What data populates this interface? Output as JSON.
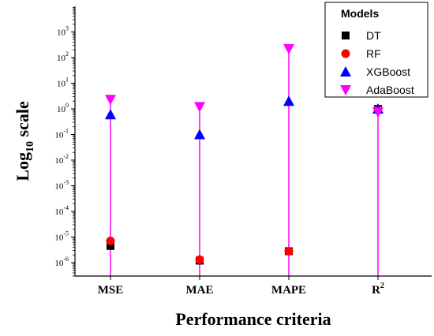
{
  "chart_data": {
    "type": "scatter",
    "xlabel": "Performance criteria",
    "ylabel": "Log",
    "ylabel_sub": "10",
    "ylabel_suffix": " scale",
    "y_scale": "log",
    "ylim": [
      3e-07,
      10000
    ],
    "categories": [
      "MSE",
      "MAE",
      "MAPE",
      "R²"
    ],
    "category_labels": [
      {
        "base": "MSE",
        "sup": ""
      },
      {
        "base": "MAE",
        "sup": ""
      },
      {
        "base": "MAPE",
        "sup": ""
      },
      {
        "base": "R",
        "sup": "2"
      }
    ],
    "y_ticks": [
      {
        "base": "10",
        "exp": "-6",
        "value": 1e-06
      },
      {
        "base": "10",
        "exp": "-5",
        "value": 1e-05
      },
      {
        "base": "10",
        "exp": "-4",
        "value": 0.0001
      },
      {
        "base": "10",
        "exp": "-3",
        "value": 0.001
      },
      {
        "base": "10",
        "exp": "-2",
        "value": 0.01
      },
      {
        "base": "10",
        "exp": "-1",
        "value": 0.1
      },
      {
        "base": "10",
        "exp": "0",
        "value": 1
      },
      {
        "base": "10",
        "exp": "1",
        "value": 10
      },
      {
        "base": "10",
        "exp": "2",
        "value": 100
      },
      {
        "base": "10",
        "exp": "3",
        "value": 1000
      }
    ],
    "legend_title": "Models",
    "legend_position": "top-right",
    "series": [
      {
        "name": "DT",
        "marker": "square",
        "color": "#000000",
        "values": [
          4.5e-06,
          1.2e-06,
          2.8e-06,
          1.0
        ]
      },
      {
        "name": "RF",
        "marker": "circle",
        "color": "#ff0000",
        "values": [
          7e-06,
          1.3e-06,
          2.8e-06,
          1.0
        ]
      },
      {
        "name": "XGBoost",
        "marker": "triangle-up",
        "color": "#0000ff",
        "values": [
          0.6,
          0.1,
          2.0,
          1.0
        ]
      },
      {
        "name": "AdaBoost",
        "marker": "triangle-down",
        "color": "#ff00ff",
        "values": [
          2.3,
          1.2,
          220,
          0.75
        ]
      }
    ],
    "drop_line_color": "#ff00ff"
  }
}
